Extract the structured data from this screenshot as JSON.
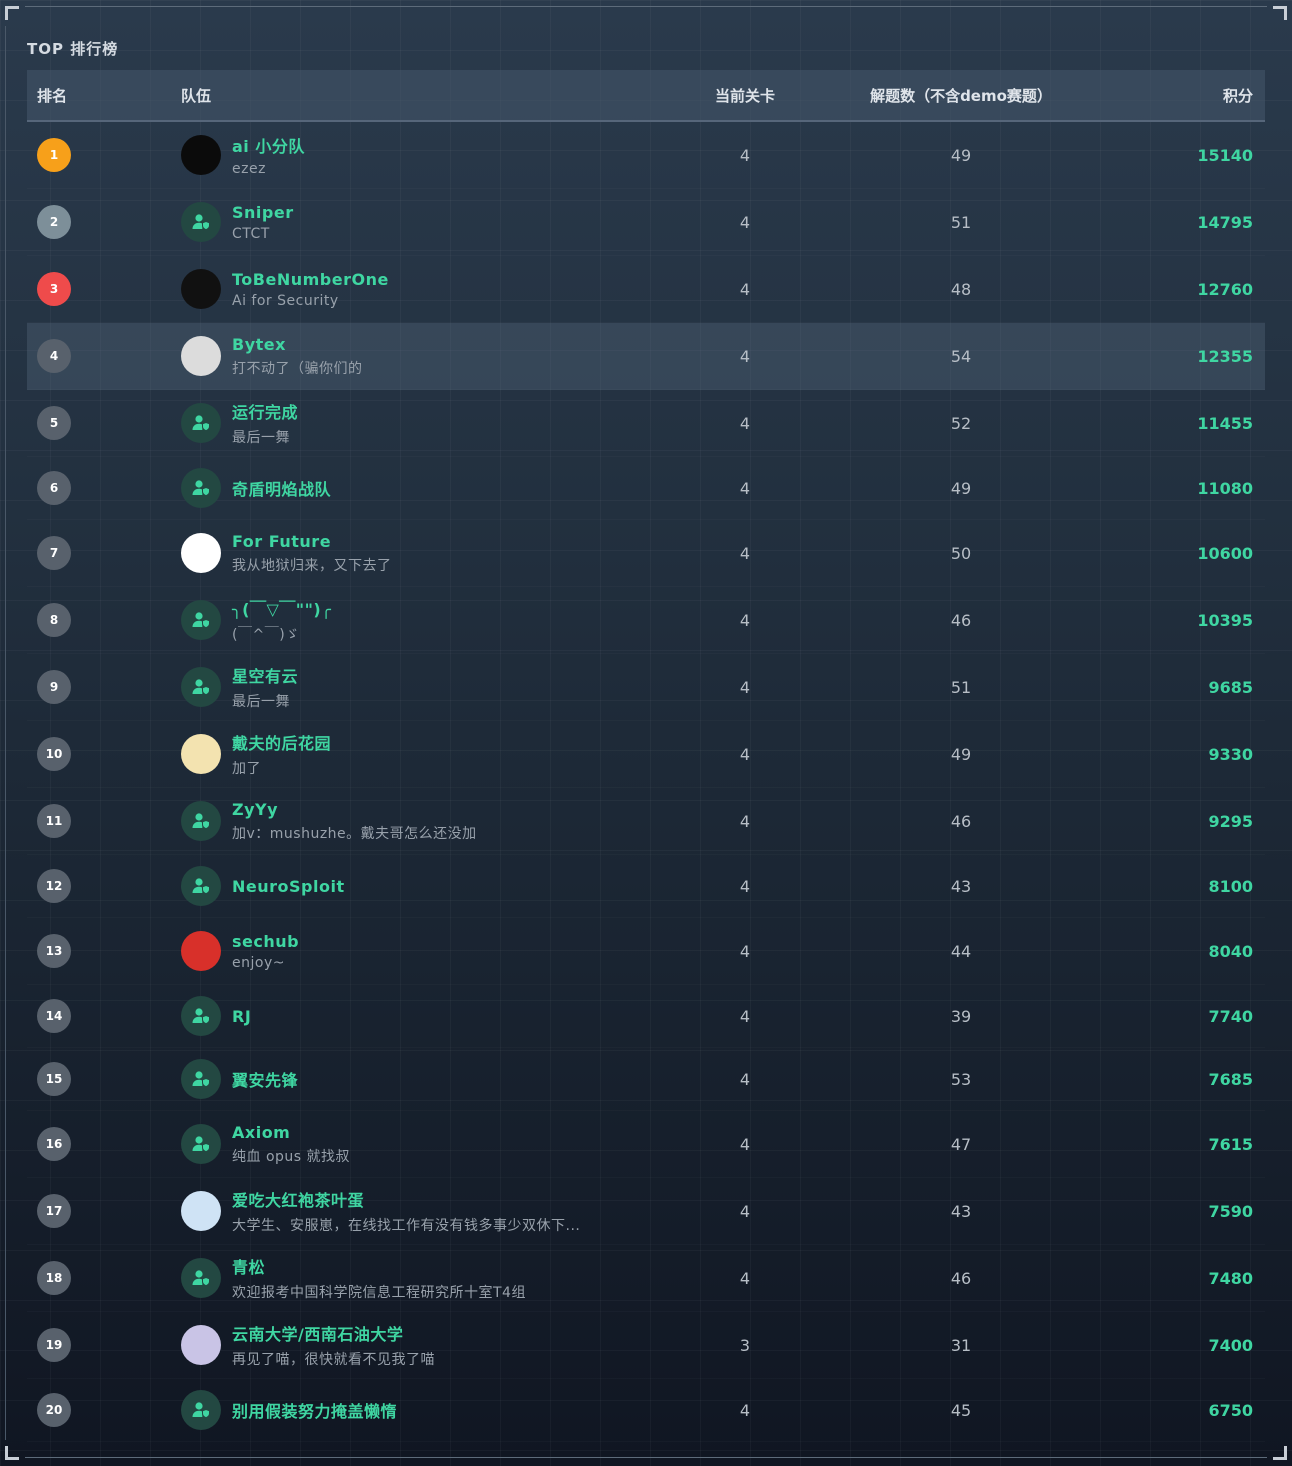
{
  "title": "TOP 排行榜",
  "columns": {
    "rank": "排名",
    "team": "队伍",
    "level": "当前关卡",
    "solved": "解题数（不含demo赛题）",
    "score": "积分"
  },
  "colors": {
    "accent": "#3fd6a2",
    "rank1": "#f7a01a",
    "rank2": "#7d8f99",
    "rank3": "#ef4b4b",
    "rank_default": "#58616c"
  },
  "rows": [
    {
      "rank": "1",
      "name": "ai 小分队",
      "sub": "ezez",
      "level": "4",
      "solved": "49",
      "score": "15140",
      "avatar": "image",
      "avatar_color": "#0b0b0b"
    },
    {
      "rank": "2",
      "name": "Sniper",
      "sub": "CTCT",
      "level": "4",
      "solved": "51",
      "score": "14795",
      "avatar": "user-shield-icon"
    },
    {
      "rank": "3",
      "name": "ToBeNumberOne",
      "sub": "Ai for Security",
      "level": "4",
      "solved": "48",
      "score": "12760",
      "avatar": "image",
      "avatar_color": "#111111"
    },
    {
      "rank": "4",
      "name": "Bytex",
      "sub": "打不动了（骗你们的",
      "level": "4",
      "solved": "54",
      "score": "12355",
      "avatar": "image",
      "avatar_color": "#dcdcdc",
      "highlighted": true
    },
    {
      "rank": "5",
      "name": "运行完成",
      "sub": "最后一舞",
      "level": "4",
      "solved": "52",
      "score": "11455",
      "avatar": "user-shield-icon"
    },
    {
      "rank": "6",
      "name": "奇盾明焰战队",
      "sub": "",
      "level": "4",
      "solved": "49",
      "score": "11080",
      "avatar": "user-shield-icon"
    },
    {
      "rank": "7",
      "name": "For Future",
      "sub": "我从地狱归来，又下去了",
      "level": "4",
      "solved": "50",
      "score": "10600",
      "avatar": "image",
      "avatar_color": "#ffffff"
    },
    {
      "rank": "8",
      "name": "╮(￣▽￣\"\")╭",
      "sub": "(￣^￣)ゞ",
      "level": "4",
      "solved": "46",
      "score": "10395",
      "avatar": "user-shield-icon"
    },
    {
      "rank": "9",
      "name": "星空有云",
      "sub": "最后一舞",
      "level": "4",
      "solved": "51",
      "score": "9685",
      "avatar": "user-shield-icon"
    },
    {
      "rank": "10",
      "name": "戴夫的后花园",
      "sub": "加了",
      "level": "4",
      "solved": "49",
      "score": "9330",
      "avatar": "image",
      "avatar_color": "#f3e3b0"
    },
    {
      "rank": "11",
      "name": "ZyYy",
      "sub": "加v：mushuzhe。戴夫哥怎么还没加",
      "level": "4",
      "solved": "46",
      "score": "9295",
      "avatar": "user-shield-icon"
    },
    {
      "rank": "12",
      "name": "NeuroSploit",
      "sub": "",
      "level": "4",
      "solved": "43",
      "score": "8100",
      "avatar": "user-shield-icon"
    },
    {
      "rank": "13",
      "name": "sechub",
      "sub": "enjoy~",
      "level": "4",
      "solved": "44",
      "score": "8040",
      "avatar": "image",
      "avatar_color": "#d8302a"
    },
    {
      "rank": "14",
      "name": "RJ",
      "sub": "",
      "level": "4",
      "solved": "39",
      "score": "7740",
      "avatar": "user-shield-icon"
    },
    {
      "rank": "15",
      "name": "翼安先锋",
      "sub": "",
      "level": "4",
      "solved": "53",
      "score": "7685",
      "avatar": "user-shield-icon"
    },
    {
      "rank": "16",
      "name": "Axiom",
      "sub": "纯血 opus 就找叔",
      "level": "4",
      "solved": "47",
      "score": "7615",
      "avatar": "user-shield-icon"
    },
    {
      "rank": "17",
      "name": "爱吃大红袍茶叶蛋",
      "sub": "大学生、安服崽，在线找工作有没有钱多事少双休下...",
      "level": "4",
      "solved": "43",
      "score": "7590",
      "avatar": "image",
      "avatar_color": "#cfe3f5"
    },
    {
      "rank": "18",
      "name": "青松",
      "sub": "欢迎报考中国科学院信息工程研究所十室T4组",
      "level": "4",
      "solved": "46",
      "score": "7480",
      "avatar": "user-shield-icon"
    },
    {
      "rank": "19",
      "name": "云南大学/西南石油大学",
      "sub": "再见了喵，很快就看不见我了喵",
      "level": "3",
      "solved": "31",
      "score": "7400",
      "avatar": "image",
      "avatar_color": "#c9c4e6"
    },
    {
      "rank": "20",
      "name": "别用假装努力掩盖懒惰",
      "sub": "",
      "level": "4",
      "solved": "45",
      "score": "6750",
      "avatar": "user-shield-icon"
    }
  ]
}
